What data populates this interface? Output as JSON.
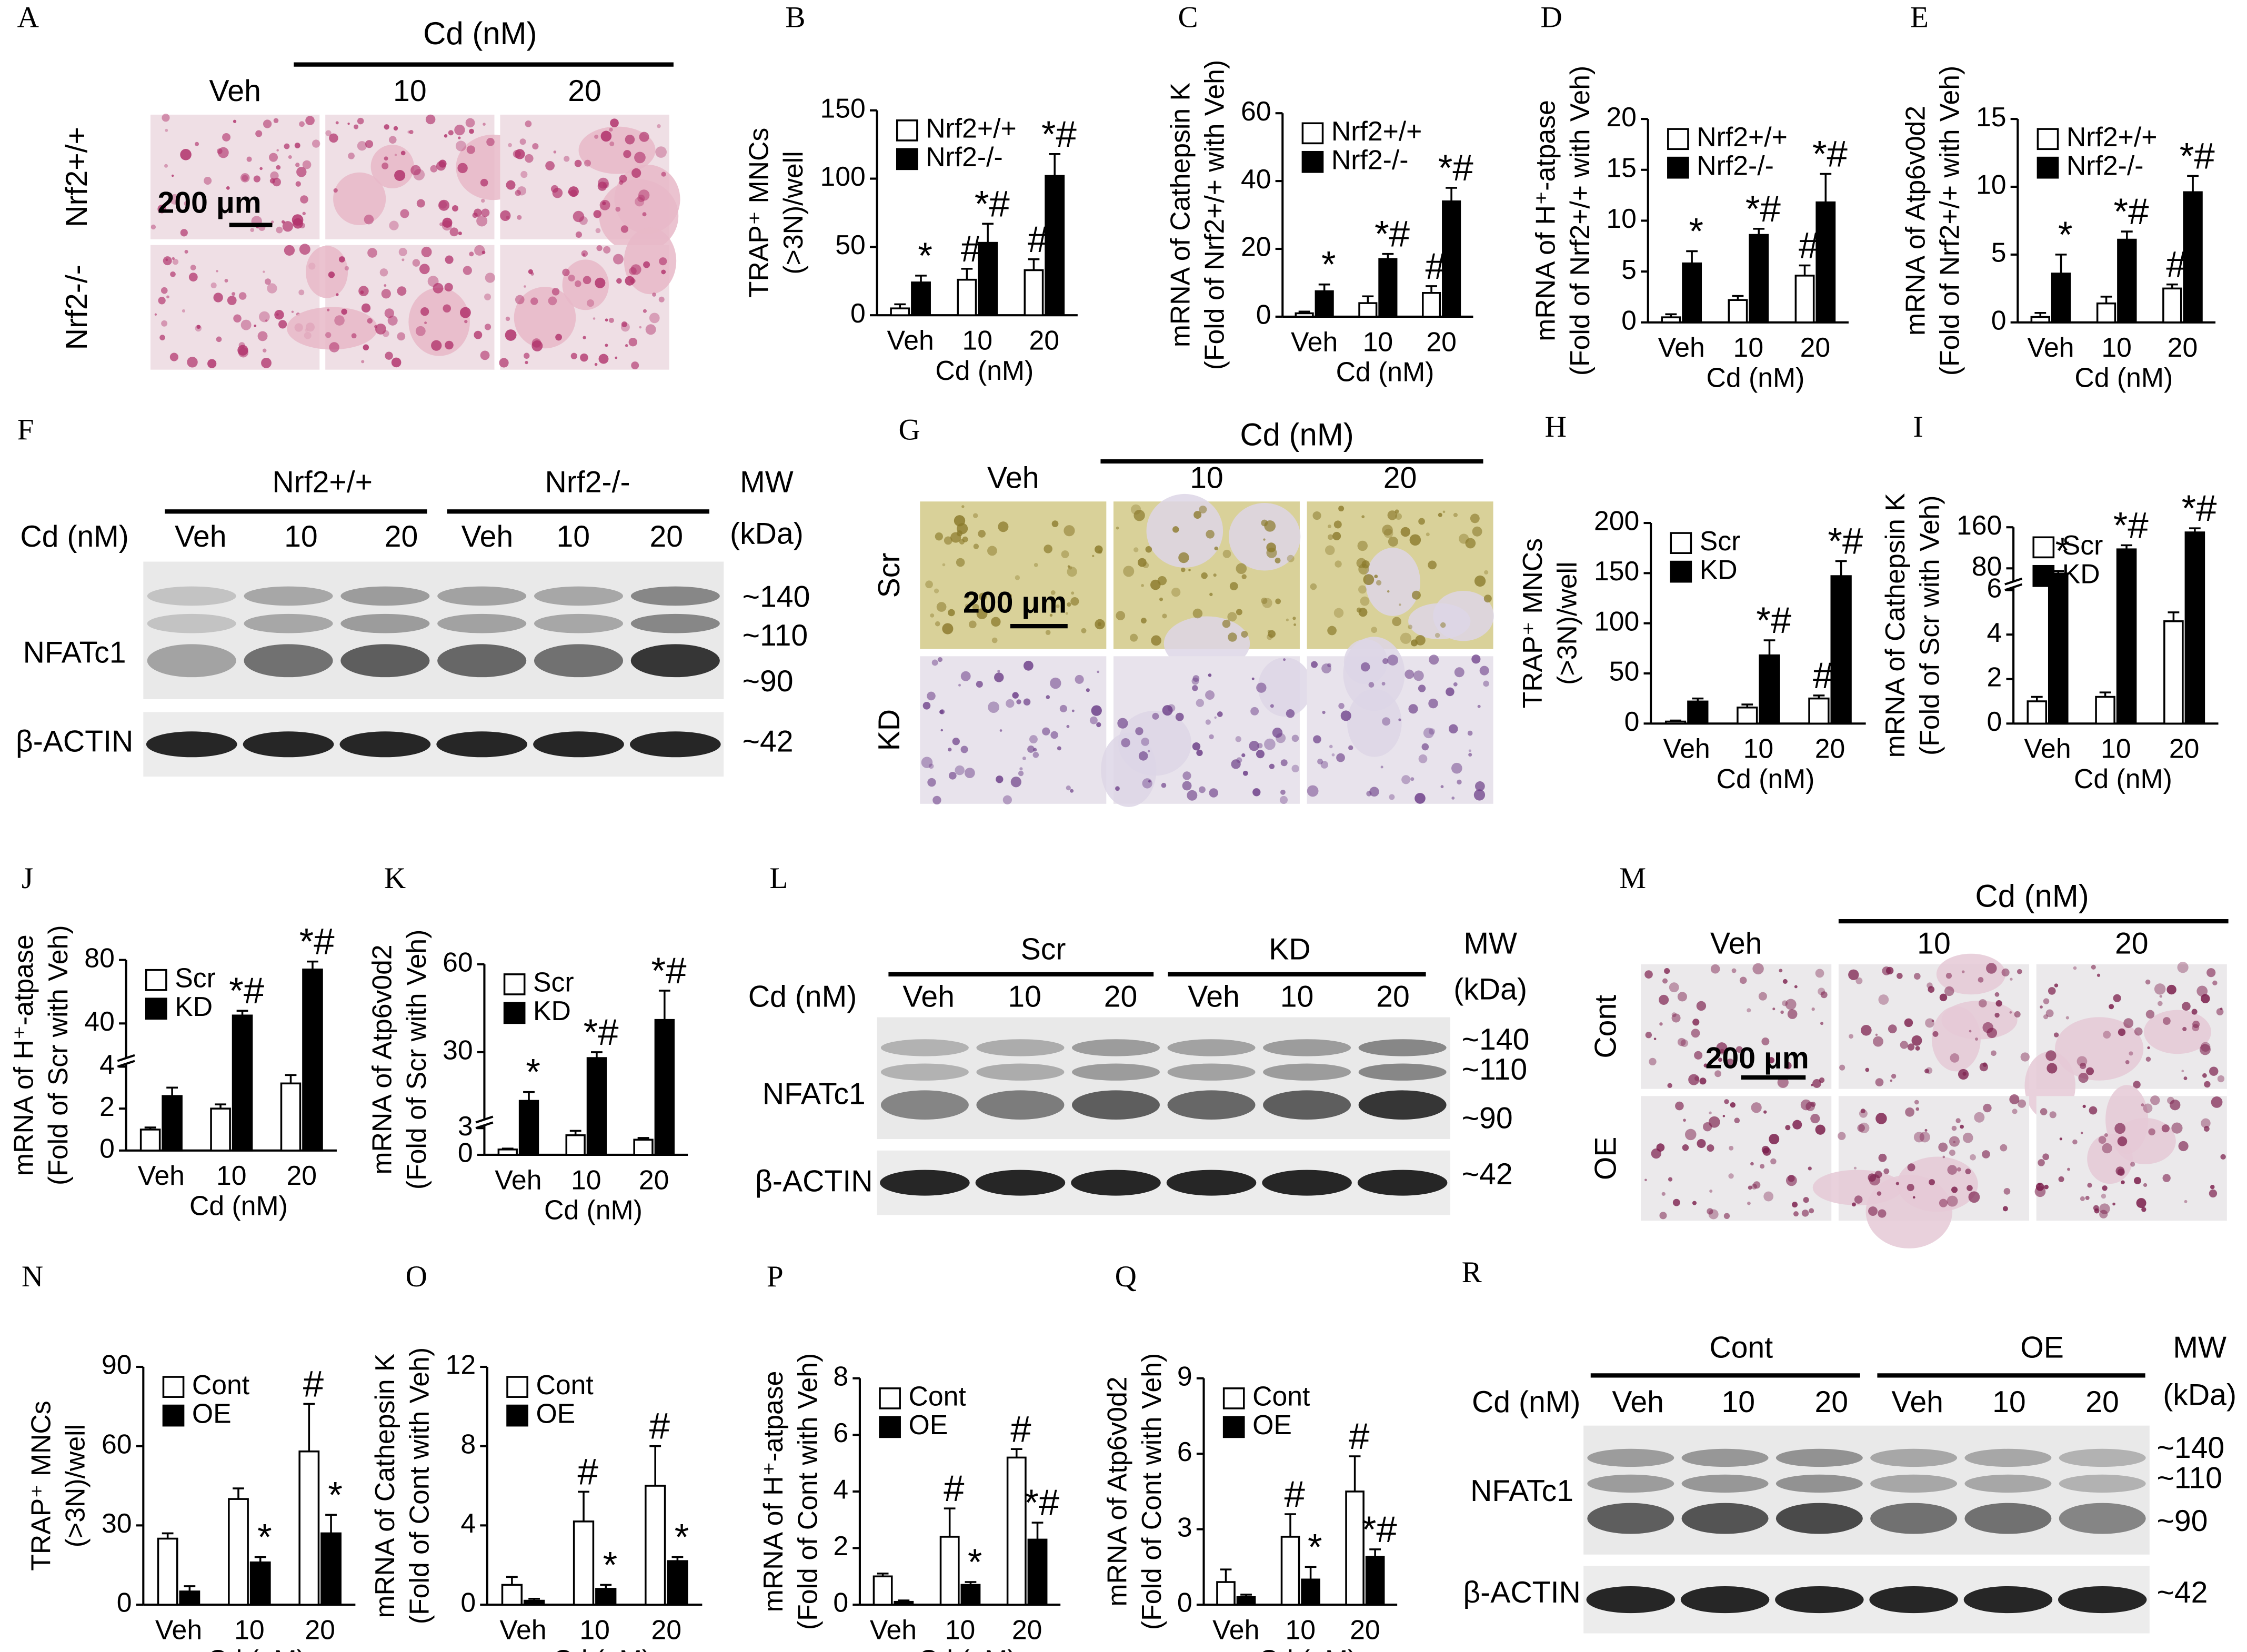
{
  "chart_data": [
    {
      "type": "bar",
      "panel": "B",
      "ylabel": [
        "TRAP⁺ MNCs",
        "(>3N)/well"
      ],
      "xlabel": "Cd (nM)",
      "categories": [
        "Veh",
        "10",
        "20"
      ],
      "series": [
        {
          "name": "Nrf2+/+",
          "color": "#ffffff",
          "values": [
            5,
            26,
            33
          ],
          "errors": [
            3,
            8,
            8
          ],
          "annotations": [
            null,
            "#",
            "#"
          ]
        },
        {
          "name": "Nrf2-/-",
          "color": "#000000",
          "values": [
            24,
            53,
            102
          ],
          "errors": [
            5,
            14,
            16
          ],
          "annotations": [
            "*",
            "*#",
            "*#"
          ]
        }
      ],
      "ylim": [
        0,
        150
      ],
      "yticks": [
        0,
        50,
        100,
        150
      ]
    },
    {
      "type": "bar",
      "panel": "C",
      "ylabel": [
        "mRNA of Cathepsin K",
        "(Fold of Nrf2+/+ with Veh)"
      ],
      "xlabel": "Cd (nM)",
      "categories": [
        "Veh",
        "10",
        "20"
      ],
      "series": [
        {
          "name": "Nrf2+/+",
          "color": "#ffffff",
          "values": [
            1,
            4,
            7
          ],
          "errors": [
            0.5,
            2,
            2
          ],
          "annotations": [
            null,
            null,
            "#"
          ]
        },
        {
          "name": "Nrf2-/-",
          "color": "#000000",
          "values": [
            7.5,
            17,
            34
          ],
          "errors": [
            2,
            1.5,
            4
          ],
          "annotations": [
            "*",
            "*#",
            "*#"
          ]
        }
      ],
      "ylim": [
        0,
        60
      ],
      "yticks": [
        0,
        20,
        40,
        60
      ]
    },
    {
      "type": "bar",
      "panel": "D",
      "ylabel": [
        "mRNA of H⁺-atpase",
        "(Fold of Nrf2+/+ with Veh)"
      ],
      "xlabel": "Cd (nM)",
      "categories": [
        "Veh",
        "10",
        "20"
      ],
      "series": [
        {
          "name": "Nrf2+/+",
          "color": "#ffffff",
          "values": [
            0.5,
            2.2,
            4.6
          ],
          "errors": [
            0.3,
            0.4,
            1
          ],
          "annotations": [
            null,
            null,
            "#"
          ]
        },
        {
          "name": "Nrf2-/-",
          "color": "#000000",
          "values": [
            5.8,
            8.6,
            11.8
          ],
          "errors": [
            1.2,
            0.6,
            2.8
          ],
          "annotations": [
            "*",
            "*#",
            "*#"
          ]
        }
      ],
      "ylim": [
        0,
        20
      ],
      "yticks": [
        0,
        5,
        10,
        15,
        20
      ]
    },
    {
      "type": "bar",
      "panel": "E",
      "ylabel": [
        "mRNA of Atp6v0d2",
        "(Fold of Nrf2+/+ with Veh)"
      ],
      "xlabel": "Cd (nM)",
      "categories": [
        "Veh",
        "10",
        "20"
      ],
      "series": [
        {
          "name": "Nrf2+/+",
          "color": "#ffffff",
          "values": [
            0.4,
            1.4,
            2.5
          ],
          "errors": [
            0.3,
            0.5,
            0.3
          ],
          "annotations": [
            null,
            null,
            "#"
          ]
        },
        {
          "name": "Nrf2-/-",
          "color": "#000000",
          "values": [
            3.6,
            6.1,
            9.6
          ],
          "errors": [
            1.4,
            0.6,
            1.2
          ],
          "annotations": [
            "*",
            "*#",
            "*#"
          ]
        }
      ],
      "ylim": [
        0,
        15
      ],
      "yticks": [
        0,
        5,
        10,
        15
      ]
    },
    {
      "type": "bar",
      "panel": "H",
      "ylabel": [
        "TRAP⁺ MNCs",
        "(>3N)/well"
      ],
      "xlabel": "Cd (nM)",
      "categories": [
        "Veh",
        "10",
        "20"
      ],
      "series": [
        {
          "name": "Scr",
          "color": "#ffffff",
          "values": [
            2,
            16,
            25
          ],
          "errors": [
            1,
            3,
            3
          ],
          "annotations": [
            null,
            null,
            "#"
          ]
        },
        {
          "name": "KD",
          "color": "#000000",
          "values": [
            22,
            68,
            147
          ],
          "errors": [
            3,
            15,
            15
          ],
          "annotations": [
            null,
            "*#",
            "*#"
          ]
        }
      ],
      "ylim": [
        0,
        200
      ],
      "yticks": [
        0,
        50,
        100,
        150,
        200
      ]
    },
    {
      "type": "bar",
      "panel": "I",
      "ylabel": [
        "mRNA of Cathepsin K",
        "(Fold of Scr with Veh)"
      ],
      "xlabel": "Cd (nM)",
      "categories": [
        "Veh",
        "10",
        "20"
      ],
      "series": [
        {
          "name": "Scr",
          "color": "#ffffff",
          "values": [
            1,
            1.2,
            4.6
          ],
          "errors": [
            0.2,
            0.2,
            0.4
          ],
          "annotations": [
            null,
            null,
            null
          ]
        },
        {
          "name": "KD",
          "color": "#000000",
          "values": [
            70,
            117,
            150
          ],
          "errors": [
            5,
            8,
            8
          ],
          "annotations": [
            "*",
            "*#",
            "*#"
          ]
        }
      ],
      "ylim": [
        0,
        160
      ],
      "ybreak": [
        6,
        60
      ],
      "yticks": [
        0,
        2,
        4,
        6,
        80,
        160
      ]
    },
    {
      "type": "bar",
      "panel": "J",
      "ylabel": [
        "mRNA of H⁺-atpase",
        "(Fold of Scr with Veh)"
      ],
      "xlabel": "Cd (nM)",
      "categories": [
        "Veh",
        "10",
        "20"
      ],
      "series": [
        {
          "name": "Scr",
          "color": "#ffffff",
          "values": [
            1,
            2,
            3.2
          ],
          "errors": [
            0.1,
            0.2,
            0.4
          ],
          "annotations": [
            null,
            null,
            null
          ]
        },
        {
          "name": "KD",
          "color": "#000000",
          "values": [
            2.6,
            45,
            74
          ],
          "errors": [
            0.4,
            3,
            5
          ],
          "annotations": [
            null,
            "*#",
            "*#"
          ]
        }
      ],
      "ylim": [
        0,
        80
      ],
      "ybreak": [
        4,
        20
      ],
      "yticks": [
        0,
        2,
        4,
        40,
        80
      ]
    },
    {
      "type": "bar",
      "panel": "K",
      "ylabel": [
        "mRNA of Atp6v0d2",
        "(Fold of Scr with Veh)"
      ],
      "xlabel": "Cd (nM)",
      "categories": [
        "Veh",
        "10",
        "20"
      ],
      "series": [
        {
          "name": "Scr",
          "color": "#ffffff",
          "values": [
            0.6,
            2.2,
            1.7
          ],
          "errors": [
            0.1,
            0.5,
            0.2
          ],
          "annotations": [
            null,
            null,
            null
          ]
        },
        {
          "name": "KD",
          "color": "#000000",
          "values": [
            13.4,
            28,
            41
          ],
          "errors": [
            3,
            2,
            10
          ],
          "annotations": [
            "*",
            "*#",
            "*#"
          ]
        }
      ],
      "ylim": [
        0,
        60
      ],
      "ybreak": [
        3,
        8
      ],
      "yticks": [
        0,
        3,
        30,
        60
      ]
    },
    {
      "type": "bar",
      "panel": "N",
      "ylabel": [
        "TRAP⁺ MNCs",
        "(>3N)/well"
      ],
      "xlabel": "Cd (nM)",
      "categories": [
        "Veh",
        "10",
        "20"
      ],
      "series": [
        {
          "name": "Cont",
          "color": "#ffffff",
          "values": [
            25,
            40,
            58
          ],
          "errors": [
            2,
            4,
            18
          ],
          "annotations": [
            null,
            null,
            "#"
          ]
        },
        {
          "name": "OE",
          "color": "#000000",
          "values": [
            5,
            16,
            27
          ],
          "errors": [
            2,
            2,
            7
          ],
          "annotations": [
            null,
            "*",
            "*"
          ]
        }
      ],
      "ylim": [
        0,
        90
      ],
      "yticks": [
        0,
        30,
        60,
        90
      ]
    },
    {
      "type": "bar",
      "panel": "O",
      "ylabel": [
        "mRNA of Cathepsin K",
        "(Fold of Cont with Veh)"
      ],
      "xlabel": "Cd (nM)",
      "categories": [
        "Veh",
        "10",
        "20"
      ],
      "series": [
        {
          "name": "Cont",
          "color": "#ffffff",
          "values": [
            1,
            4.2,
            6
          ],
          "errors": [
            0.4,
            1.5,
            2
          ],
          "annotations": [
            null,
            "#",
            "#"
          ]
        },
        {
          "name": "OE",
          "color": "#000000",
          "values": [
            0.2,
            0.8,
            2.2
          ],
          "errors": [
            0.1,
            0.2,
            0.2
          ],
          "annotations": [
            null,
            "*",
            "*"
          ]
        }
      ],
      "ylim": [
        0,
        12
      ],
      "yticks": [
        0,
        4,
        8,
        12
      ]
    },
    {
      "type": "bar",
      "panel": "P",
      "ylabel": [
        "mRNA of H⁺-atpase",
        "(Fold of Cont with Veh)"
      ],
      "xlabel": "Cd (nM)",
      "categories": [
        "Veh",
        "10",
        "20"
      ],
      "series": [
        {
          "name": "Cont",
          "color": "#ffffff",
          "values": [
            1,
            2.4,
            5.2
          ],
          "errors": [
            0.1,
            1,
            0.3
          ],
          "annotations": [
            null,
            "#",
            "#"
          ]
        },
        {
          "name": "OE",
          "color": "#000000",
          "values": [
            0.1,
            0.7,
            2.3
          ],
          "errors": [
            0.05,
            0.1,
            0.6
          ],
          "annotations": [
            null,
            "*",
            "*#"
          ]
        }
      ],
      "ylim": [
        0,
        8
      ],
      "yticks": [
        0,
        2,
        4,
        6,
        8
      ]
    },
    {
      "type": "bar",
      "panel": "Q",
      "ylabel": [
        "mRNA of Atp6v0d2",
        "(Fold of Cont with Veh)"
      ],
      "xlabel": "Cd (nM)",
      "categories": [
        "Veh",
        "10",
        "20"
      ],
      "series": [
        {
          "name": "Cont",
          "color": "#ffffff",
          "values": [
            0.9,
            2.7,
            4.5
          ],
          "errors": [
            0.5,
            0.9,
            1.4
          ],
          "annotations": [
            null,
            "#",
            "#"
          ]
        },
        {
          "name": "OE",
          "color": "#000000",
          "values": [
            0.3,
            1,
            1.9
          ],
          "errors": [
            0.1,
            0.5,
            0.3
          ],
          "annotations": [
            null,
            "*",
            "*#"
          ]
        }
      ],
      "ylim": [
        0,
        9
      ],
      "yticks": [
        0,
        3,
        6,
        9
      ]
    }
  ],
  "micrographs": [
    {
      "panel": "A",
      "header": "Cd (nM)",
      "columns": [
        "Veh",
        "10",
        "20"
      ],
      "rows": [
        "Nrf2+/+",
        "Nrf2-/-"
      ],
      "scale_bar": "200 μm"
    },
    {
      "panel": "G",
      "header": "Cd (nM)",
      "columns": [
        "Veh",
        "10",
        "20"
      ],
      "rows": [
        "Scr",
        "KD"
      ],
      "scale_bar": "200 μm"
    },
    {
      "panel": "M",
      "header": "Cd (nM)",
      "columns": [
        "Veh",
        "10",
        "20"
      ],
      "rows": [
        "Cont",
        "OE"
      ],
      "scale_bar": "200 μm"
    }
  ],
  "blots": [
    {
      "panel": "F",
      "groups": [
        "Nrf2+/+",
        "Nrf2-/-"
      ],
      "dose_label": "Cd (nM)",
      "lanes": [
        "Veh",
        "10",
        "20",
        "Veh",
        "10",
        "20"
      ],
      "mw": "MW",
      "mw_unit": "(kDa)",
      "proteins": [
        "NFATc1",
        "β-ACTIN"
      ],
      "markers": [
        "~140",
        "~110",
        "~90",
        "~42"
      ]
    },
    {
      "panel": "L",
      "groups": [
        "Scr",
        "KD"
      ],
      "dose_label": "Cd (nM)",
      "lanes": [
        "Veh",
        "10",
        "20",
        "Veh",
        "10",
        "20"
      ],
      "mw": "MW",
      "mw_unit": "(kDa)",
      "proteins": [
        "NFATc1",
        "β-ACTIN"
      ],
      "markers": [
        "~140",
        "~110",
        "~90",
        "~42"
      ]
    },
    {
      "panel": "R",
      "groups": [
        "Cont",
        "OE"
      ],
      "dose_label": "Cd (nM)",
      "lanes": [
        "Veh",
        "10",
        "20",
        "Veh",
        "10",
        "20"
      ],
      "mw": "MW",
      "mw_unit": "(kDa)",
      "proteins": [
        "NFATc1",
        "β-ACTIN"
      ],
      "markers": [
        "~140",
        "~110",
        "~90",
        "~42"
      ]
    }
  ]
}
